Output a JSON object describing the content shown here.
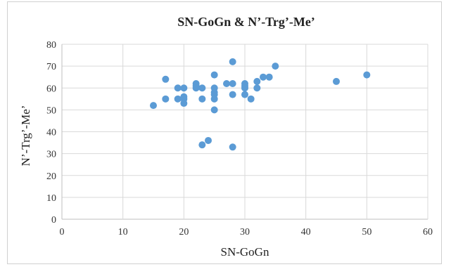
{
  "chart_data": {
    "type": "scatter",
    "title": "SN-GoGn & N’-Trg’-Me’",
    "xlabel": "SN-GoGn",
    "ylabel": "N’-Trg’-Me’",
    "xlim": [
      0,
      60
    ],
    "ylim": [
      0,
      80
    ],
    "xticks": [
      0,
      10,
      20,
      30,
      40,
      50,
      60
    ],
    "yticks": [
      0,
      10,
      20,
      30,
      40,
      50,
      60,
      70,
      80
    ],
    "grid": true,
    "marker_color": "#5b9bd5",
    "points": [
      [
        15,
        52
      ],
      [
        17,
        64
      ],
      [
        17,
        55
      ],
      [
        19,
        60
      ],
      [
        19,
        55
      ],
      [
        20,
        60
      ],
      [
        20,
        56
      ],
      [
        20,
        55
      ],
      [
        20,
        53
      ],
      [
        22,
        62
      ],
      [
        22,
        61
      ],
      [
        22,
        60
      ],
      [
        23,
        60
      ],
      [
        23,
        55
      ],
      [
        23,
        34
      ],
      [
        24,
        36
      ],
      [
        25,
        66
      ],
      [
        25,
        60
      ],
      [
        25,
        58
      ],
      [
        25,
        57
      ],
      [
        25,
        55
      ],
      [
        25,
        50
      ],
      [
        27,
        62
      ],
      [
        28,
        72
      ],
      [
        28,
        62
      ],
      [
        28,
        57
      ],
      [
        28,
        33
      ],
      [
        30,
        62
      ],
      [
        30,
        61
      ],
      [
        30,
        60
      ],
      [
        30,
        57
      ],
      [
        31,
        55
      ],
      [
        32,
        63
      ],
      [
        32,
        60
      ],
      [
        33,
        65
      ],
      [
        34,
        65
      ],
      [
        35,
        70
      ],
      [
        45,
        63
      ],
      [
        50,
        66
      ]
    ]
  }
}
